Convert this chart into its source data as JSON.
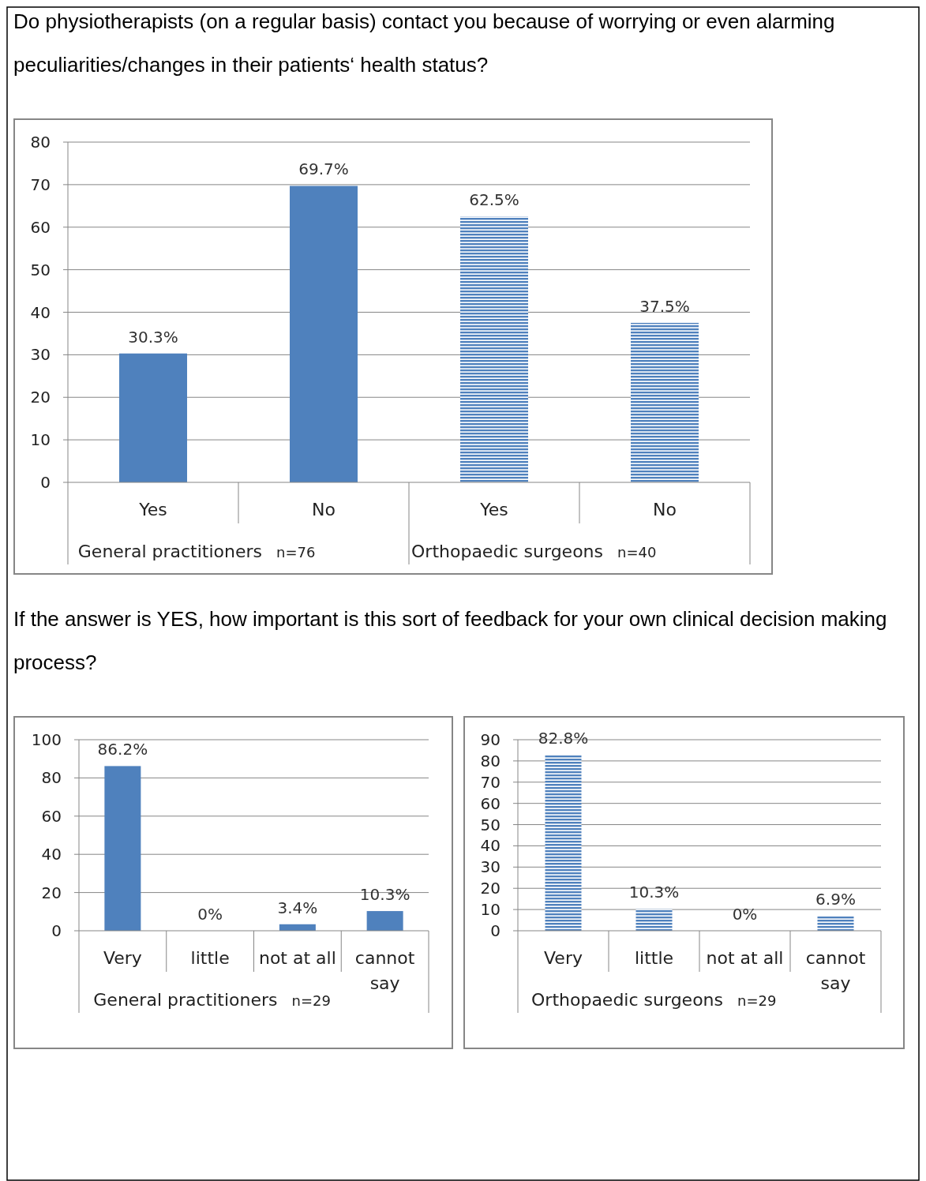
{
  "chart_data": [
    {
      "type": "bar",
      "title": "Do physiotherapists (on a regular basis) contact you because of worrying or even alarming peculiarities/changes in their patients‘ health status?",
      "categories": [
        "Yes",
        "No",
        "Yes",
        "No"
      ],
      "series": [
        {
          "color": "#4f81bd",
          "values": [
            30.3,
            69.7,
            null,
            null
          ]
        },
        {
          "color": "#4f81bd",
          "values": [
            null,
            null,
            62.5,
            37.5
          ]
        }
      ],
      "value_labels": [
        "30.3%",
        "69.7%",
        "62.5%",
        "37.5%"
      ],
      "annotations": [
        "General practitioners",
        "n=76",
        "Orthopaedic surgeons",
        "n=40"
      ],
      "ylim": [
        0,
        80
      ],
      "yticks": [
        0,
        10,
        20,
        30,
        40,
        50,
        60,
        70,
        80
      ],
      "grid": "y"
    },
    {
      "type": "bar",
      "title": "If the answer is YES, how important is this sort of feedback for your own clinical decision making process?",
      "categories": [
        "Very",
        "little",
        "not at all",
        "cannot say"
      ],
      "series": [
        {
          "color": "#4f81bd",
          "values": [
            86.2,
            0,
            3.4,
            10.3
          ]
        }
      ],
      "value_labels": [
        "86.2%",
        "0%",
        "3.4%",
        "10.3%"
      ],
      "annotations": [
        "General practitioners",
        "n=29"
      ],
      "ylim": [
        0,
        100
      ],
      "yticks": [
        0,
        20,
        40,
        60,
        80,
        100
      ],
      "grid": "y"
    },
    {
      "type": "bar",
      "categories": [
        "Very",
        "little",
        "not at all",
        "cannot say"
      ],
      "series": [
        {
          "color": "#4f81bd",
          "values": [
            82.8,
            10.3,
            0,
            6.9
          ]
        }
      ],
      "value_labels": [
        "82.8%",
        "10.3%",
        "0%",
        "6.9%"
      ],
      "annotations": [
        "Orthopaedic surgeons",
        "n=29"
      ],
      "ylim": [
        0,
        90
      ],
      "yticks": [
        0,
        10,
        20,
        30,
        40,
        50,
        60,
        70,
        80,
        90
      ],
      "grid": "y"
    }
  ]
}
